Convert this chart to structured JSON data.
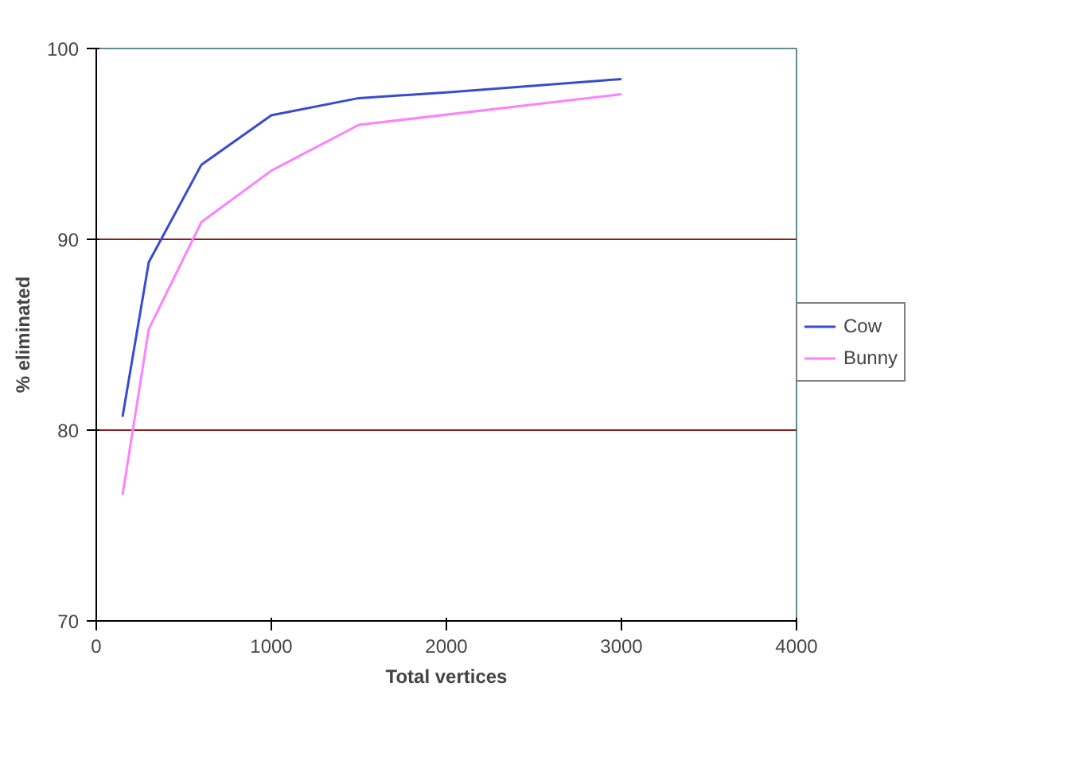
{
  "chart_data": {
    "type": "line",
    "xlabel": "Total vertices",
    "ylabel": "% eliminated",
    "xlim": [
      0,
      4000
    ],
    "xticks": [
      0,
      1000,
      2000,
      3000,
      4000
    ],
    "ylim": [
      70,
      100
    ],
    "yticks": [
      70,
      80,
      90,
      100
    ],
    "grid": "y",
    "legend": "right",
    "marker": "none",
    "line_style": "solid",
    "series": [
      {
        "name": "Cow",
        "color": "#3a4ad0",
        "x": [
          150,
          300,
          600,
          1000,
          1500,
          2000,
          3000
        ],
        "values": [
          80.7,
          88.8,
          93.9,
          96.5,
          97.4,
          97.7,
          98.4
        ]
      },
      {
        "name": "Bunny",
        "color": "#ff80ff",
        "x": [
          150,
          300,
          600,
          1000,
          1500,
          3000
        ],
        "values": [
          76.6,
          85.3,
          90.9,
          93.6,
          96.0,
          97.6
        ]
      }
    ]
  }
}
